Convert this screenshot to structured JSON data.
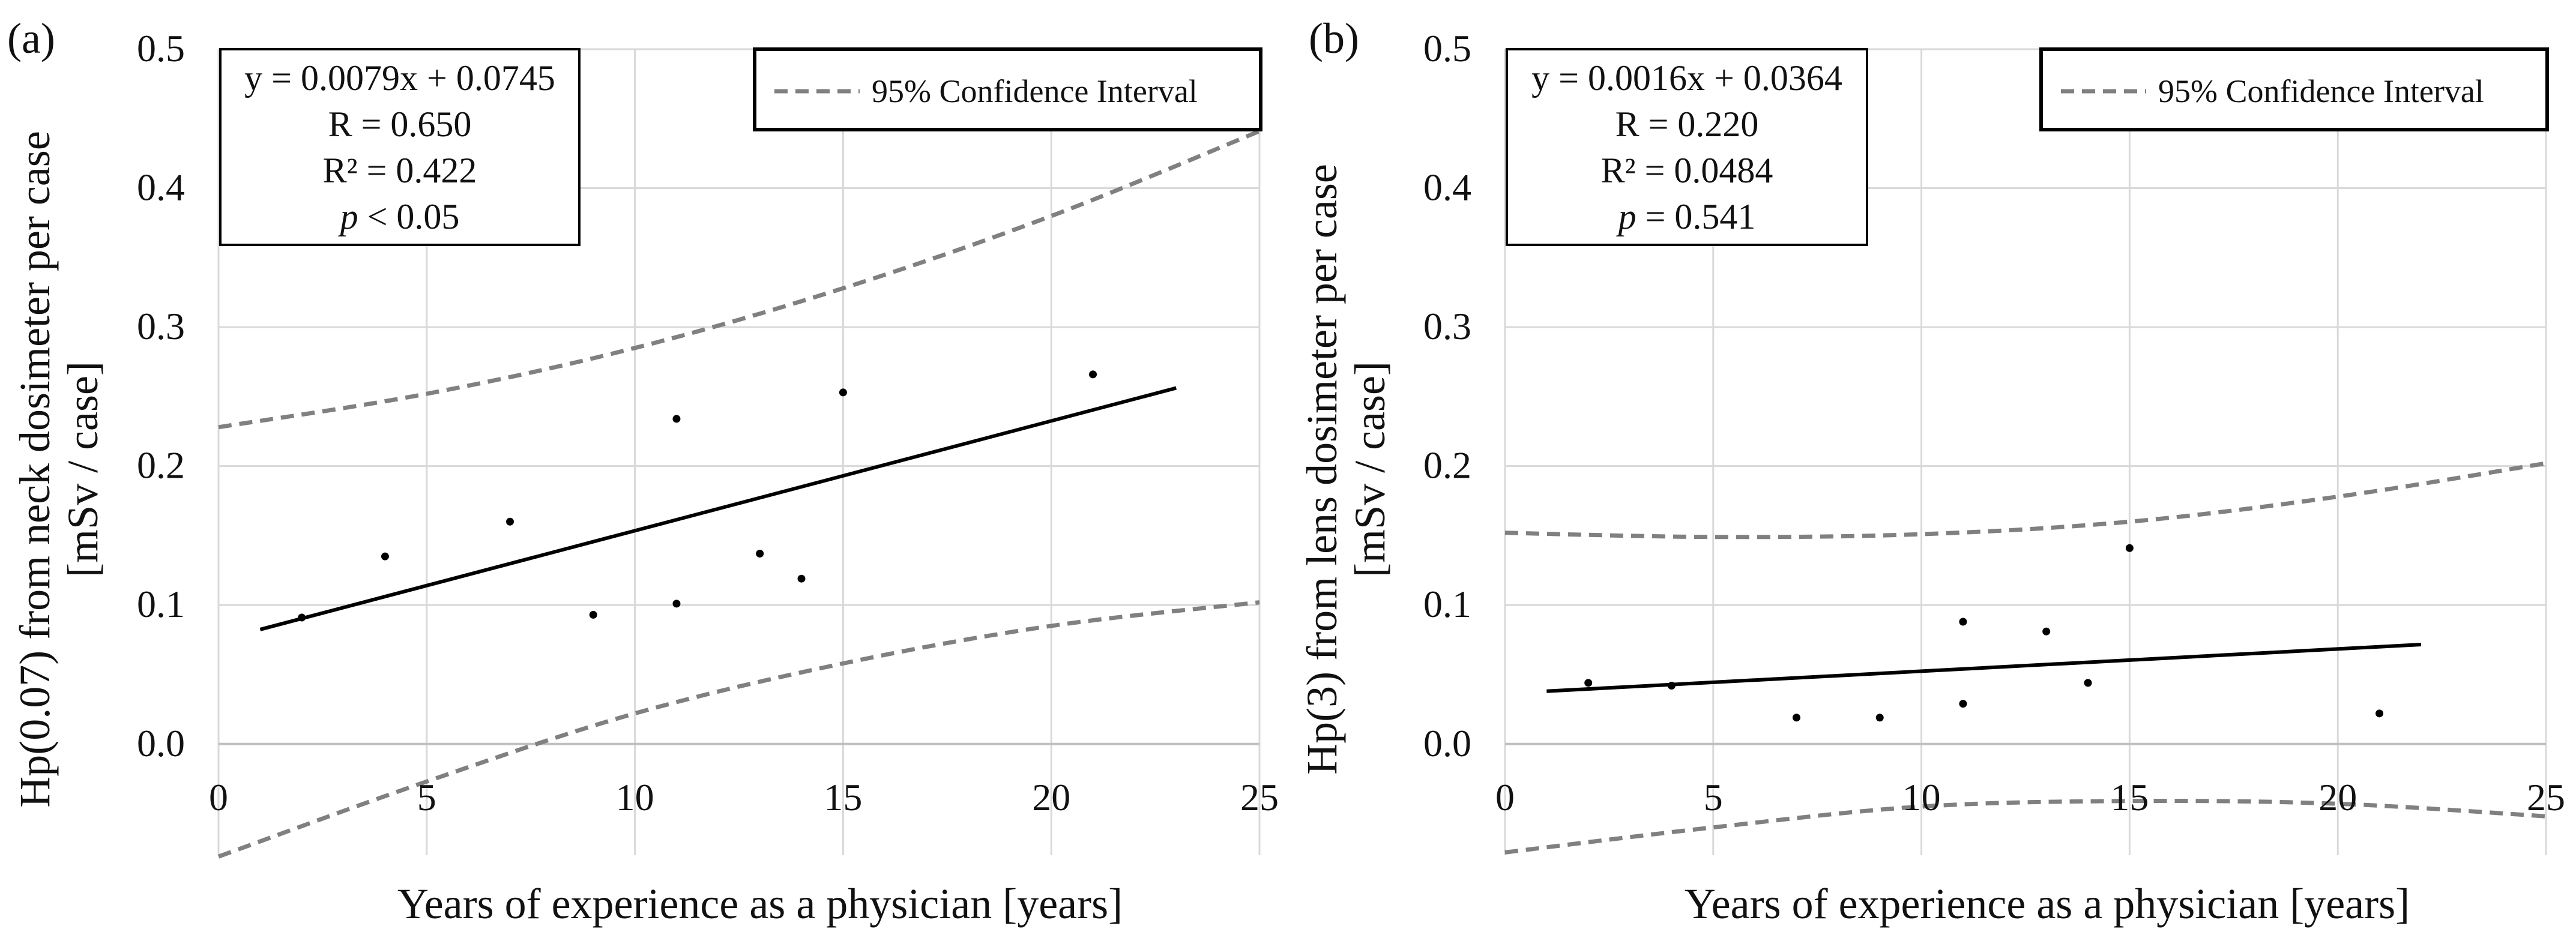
{
  "colors": {
    "grid": "#d9d9d9",
    "axis": "#bfbfbf",
    "fit_line": "#000000",
    "ci_line": "#808080",
    "points": "#000000",
    "text": "#111111"
  },
  "chart_data": [
    {
      "type": "scatter",
      "panel_label": "(a)",
      "xlabel": "Years of experience as a physician [years]",
      "ylabel": "Hp(0.07) from neck dosimeter per case",
      "ylabel_units": "[mSv / case]",
      "xlim": [
        0,
        25
      ],
      "ylim": [
        -0.08,
        0.5
      ],
      "x_ticks": [
        0,
        5,
        10,
        15,
        20,
        25
      ],
      "x_tick_labels": [
        "0",
        "5",
        "10",
        "15",
        "20",
        "25"
      ],
      "y_ticks": [
        0.0,
        0.1,
        0.2,
        0.3,
        0.4,
        0.5
      ],
      "y_tick_labels": [
        "0.0",
        "0.1",
        "0.2",
        "0.3",
        "0.4",
        "0.5"
      ],
      "grid": true,
      "points": {
        "x": [
          2,
          4,
          7,
          9,
          11,
          11,
          13,
          14,
          15,
          21
        ],
        "y": [
          0.091,
          0.135,
          0.16,
          0.093,
          0.234,
          0.101,
          0.137,
          0.119,
          0.253,
          0.266
        ]
      },
      "fit": {
        "slope": 0.0079,
        "intercept": 0.0745,
        "x_range": [
          1,
          23
        ]
      },
      "confidence_interval": {
        "x": [
          0,
          5,
          10,
          15,
          20,
          25
        ],
        "upper": [
          0.228,
          0.252,
          0.285,
          0.328,
          0.38,
          0.441
        ],
        "lower": [
          -0.081,
          -0.027,
          0.022,
          0.058,
          0.085,
          0.102
        ]
      },
      "stats_box": [
        "y = 0.0079x + 0.0745",
        "R = 0.650",
        "R² = 0.422"
      ],
      "stats_p": {
        "symbol": "p",
        "rest": " < 0.05"
      },
      "legend": {
        "label": "95% Confidence Interval",
        "position": "top-right"
      }
    },
    {
      "type": "scatter",
      "panel_label": "(b)",
      "xlabel": "Years of experience as a physician [years]",
      "ylabel": "Hp(3) from lens dosimeter per case",
      "ylabel_units": "[mSv / case]",
      "xlim": [
        0,
        25
      ],
      "ylim": [
        -0.08,
        0.5
      ],
      "x_ticks": [
        0,
        5,
        10,
        15,
        20,
        25
      ],
      "x_tick_labels": [
        "0",
        "5",
        "10",
        "15",
        "20",
        "25"
      ],
      "y_ticks": [
        0.0,
        0.1,
        0.2,
        0.3,
        0.4,
        0.5
      ],
      "y_tick_labels": [
        "0.0",
        "0.1",
        "0.2",
        "0.3",
        "0.4",
        "0.5"
      ],
      "grid": true,
      "points": {
        "x": [
          2,
          4,
          7,
          9,
          11,
          11,
          13,
          14,
          15,
          21
        ],
        "y": [
          0.044,
          0.042,
          0.019,
          0.019,
          0.088,
          0.029,
          0.081,
          0.044,
          0.141,
          0.022
        ]
      },
      "fit": {
        "slope": 0.0016,
        "intercept": 0.0364,
        "x_range": [
          1,
          22
        ]
      },
      "confidence_interval": {
        "x": [
          0,
          5,
          10,
          15,
          20,
          25
        ],
        "upper": [
          0.152,
          0.149,
          0.151,
          0.16,
          0.178,
          0.202
        ],
        "lower": [
          -0.078,
          -0.06,
          -0.045,
          -0.041,
          -0.043,
          -0.052
        ]
      },
      "stats_box": [
        "y = 0.0016x + 0.0364",
        "R = 0.220",
        "R² = 0.0484"
      ],
      "stats_p": {
        "symbol": "p",
        "rest": " = 0.541"
      },
      "legend": {
        "label": "95% Confidence Interval",
        "position": "top-right"
      }
    }
  ]
}
